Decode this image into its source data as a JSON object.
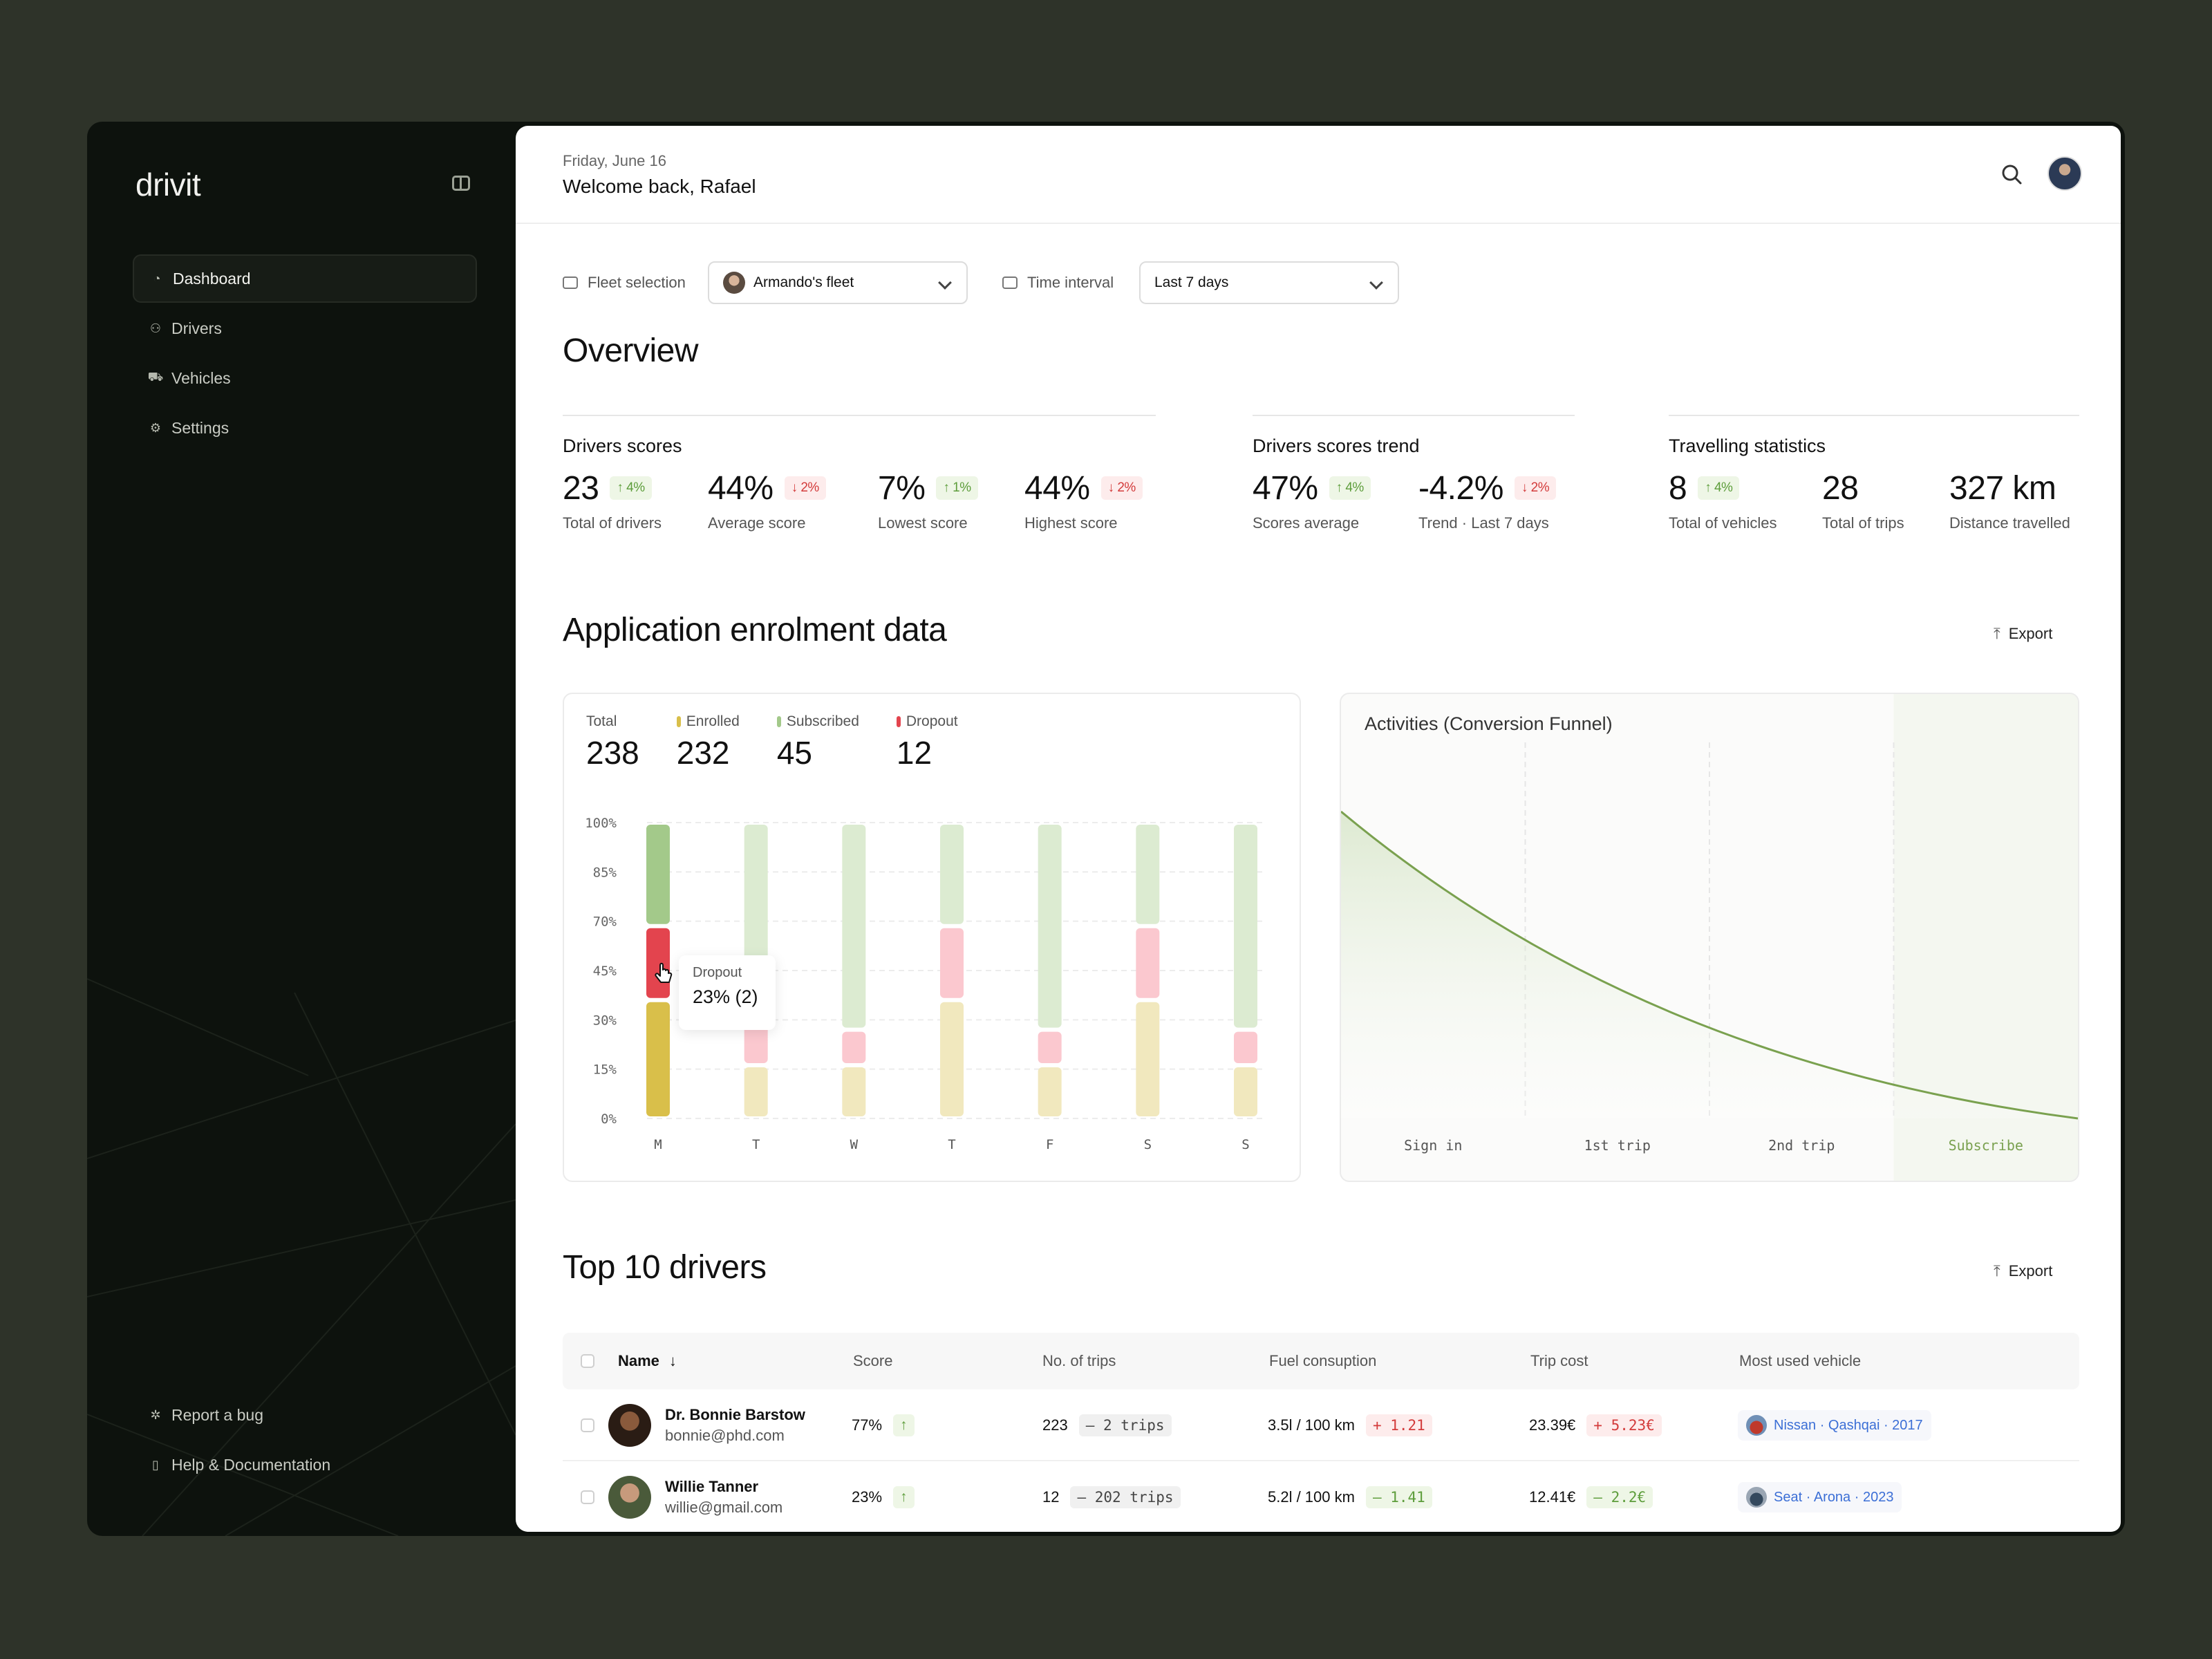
{
  "app": {
    "logo": "drivit"
  },
  "sidebar": {
    "items": [
      {
        "label": "Dashboard",
        "icon": "dashboard-icon",
        "active": true
      },
      {
        "label": "Drivers",
        "icon": "users-icon",
        "active": false
      },
      {
        "label": "Vehicles",
        "icon": "car-icon",
        "active": false
      },
      {
        "label": "Settings",
        "icon": "gear-icon",
        "active": false
      }
    ],
    "bottom": [
      {
        "label": "Report a bug",
        "icon": "bug-icon"
      },
      {
        "label": "Help & Documentation",
        "icon": "book-icon"
      }
    ]
  },
  "header": {
    "date": "Friday, June 16",
    "welcome": "Welcome back, Rafael"
  },
  "filters": {
    "fleet_label": "Fleet selection",
    "fleet_value": "Armando's fleet",
    "time_label": "Time interval",
    "time_value": "Last 7 days"
  },
  "overview": {
    "title": "Overview",
    "drivers_scores": {
      "title": "Drivers scores",
      "stats": [
        {
          "value": "23",
          "delta": "4%",
          "dir": "up",
          "label": "Total of drivers"
        },
        {
          "value": "44%",
          "delta": "2%",
          "dir": "down",
          "label": "Average score"
        },
        {
          "value": "7%",
          "delta": "1%",
          "dir": "up",
          "label": "Lowest score"
        },
        {
          "value": "44%",
          "delta": "2%",
          "dir": "down",
          "label": "Highest score"
        }
      ]
    },
    "scores_trend": {
      "title": "Drivers scores trend",
      "stats": [
        {
          "value": "47%",
          "delta": "4%",
          "dir": "up",
          "label": "Scores average"
        },
        {
          "value": "-4.2%",
          "delta": "2%",
          "dir": "down",
          "label": "Trend · Last 7 days"
        }
      ]
    },
    "travelling": {
      "title": "Travelling statistics",
      "stats": [
        {
          "value": "8",
          "delta": "4%",
          "dir": "up",
          "label": "Total of vehicles"
        },
        {
          "value": "28",
          "label": "Total of trips"
        },
        {
          "value": "327 km",
          "label": "Distance travelled"
        }
      ]
    }
  },
  "enrolment": {
    "title": "Application enrolment data",
    "export_label": "Export",
    "totals": [
      {
        "label": "Total",
        "value": "238",
        "color": ""
      },
      {
        "label": "Enrolled",
        "value": "232",
        "color": "#d9bf4a"
      },
      {
        "label": "Subscribed",
        "value": "45",
        "color": "#a3c98a"
      },
      {
        "label": "Dropout",
        "value": "12",
        "color": "#e3444e"
      }
    ],
    "tooltip": {
      "label": "Dropout",
      "value": "23% (2)"
    }
  },
  "chart_data": [
    {
      "type": "bar",
      "stacked": true,
      "categories": [
        "M",
        "T",
        "W",
        "T",
        "F",
        "S",
        "S"
      ],
      "y_ticks": [
        "100%",
        "85%",
        "70%",
        "45%",
        "30%",
        "15%",
        "0%"
      ],
      "ylim": [
        0,
        100
      ],
      "grid": true,
      "highlighted_category": 0,
      "series": [
        {
          "name": "Enrolled",
          "color": "#d9bf4a",
          "values": [
            40,
            18,
            18,
            40,
            18,
            40,
            18
          ]
        },
        {
          "name": "Dropout",
          "color": "#e3444e",
          "values": [
            25,
            35,
            12,
            25,
            12,
            25,
            12
          ]
        },
        {
          "name": "Subscribed",
          "color": "#a3c98a",
          "values": [
            35,
            47,
            70,
            35,
            70,
            35,
            70
          ]
        }
      ]
    },
    {
      "type": "area",
      "title": "Activities (Conversion Funnel)",
      "categories": [
        "Sign in",
        "1st trip",
        "2nd trip",
        "Subscribe"
      ],
      "color": "#7aa14f",
      "grid": true
    }
  ],
  "top_drivers": {
    "title": "Top 10 drivers",
    "export_label": "Export",
    "columns": [
      "Name",
      "Score",
      "No. of trips",
      "Fuel consuption",
      "Trip cost",
      "Most used vehicle"
    ],
    "rows": [
      {
        "name": "Dr. Bonnie Barstow",
        "email": "bonnie@phd.com",
        "score": "77%",
        "score_dir": "↑",
        "trips": "223",
        "trips_delta": "– 2 trips",
        "fuel": "3.5l / 100 km",
        "fuel_delta": "+ 1.21",
        "fuel_dir": "red",
        "cost": "23.39€",
        "cost_delta": "+ 5.23€",
        "cost_dir": "red",
        "vehicle": "Nissan · Qashqai · 2017",
        "vehicle_color": "#c0392b"
      },
      {
        "name": "Willie Tanner",
        "email": "willie@gmail.com",
        "score": "23%",
        "score_dir": "↑",
        "trips": "12",
        "trips_delta": "– 202 trips",
        "fuel": "5.2l / 100 km",
        "fuel_delta": "– 1.41",
        "fuel_dir": "green",
        "cost": "12.41€",
        "cost_delta": "– 2.2€",
        "cost_dir": "green",
        "vehicle": "Seat · Arona · 2023",
        "vehicle_color": "#34495e"
      }
    ]
  }
}
